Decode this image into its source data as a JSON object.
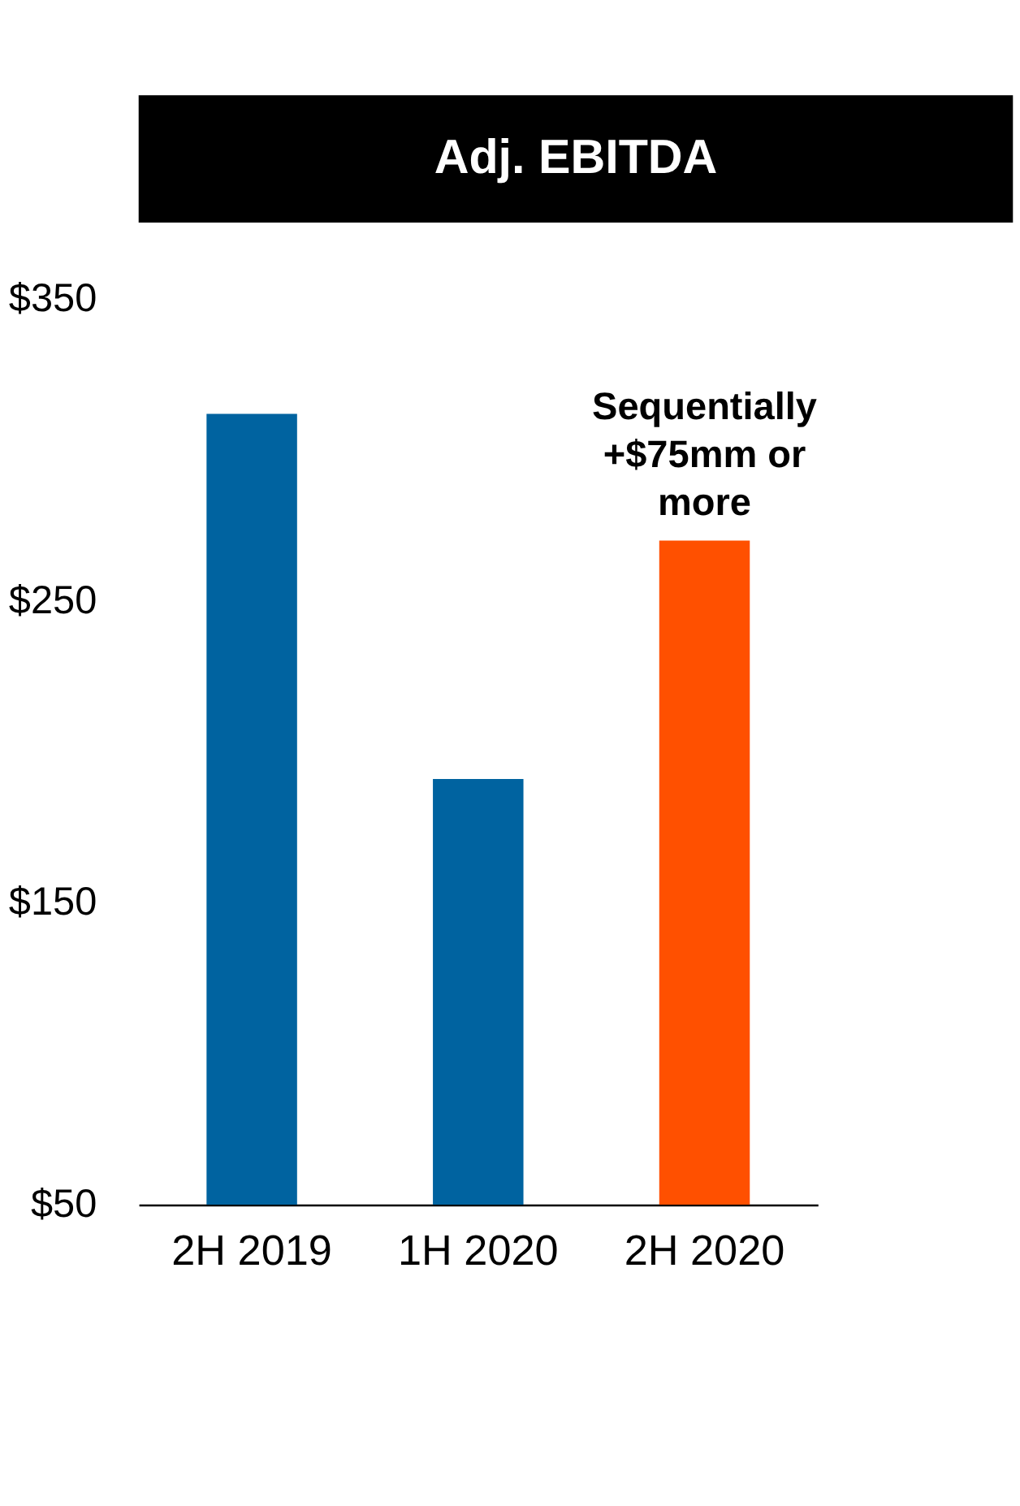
{
  "chart_data": {
    "type": "bar",
    "title": "Adj. EBITDA",
    "categories": [
      "2H 2019",
      "1H 2020",
      "2H 2020"
    ],
    "values": [
      312,
      191,
      270
    ],
    "colors": [
      "#0063a0",
      "#0063a0",
      "#ff5000"
    ],
    "ylim": [
      50,
      350
    ],
    "yticks": [
      {
        "value": 50,
        "label": "$50"
      },
      {
        "value": 150,
        "label": "$150"
      },
      {
        "value": 250,
        "label": "$250"
      },
      {
        "value": 350,
        "label": "$350"
      }
    ],
    "grid": false,
    "annotations": [
      {
        "text": "Sequentially\n+$75mm or\nmore",
        "x": "2H 2020",
        "y": 270
      }
    ]
  }
}
